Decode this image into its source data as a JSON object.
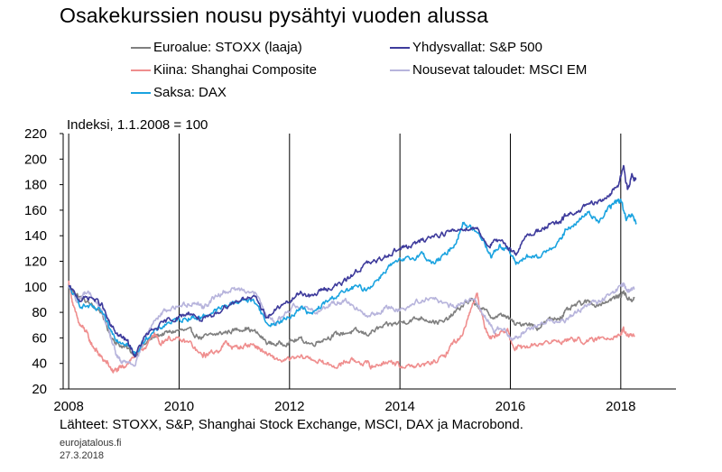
{
  "title": "Osakekurssien nousu pysähtyi vuoden alussa",
  "unit_label": "Indeksi, 1.1.2008 = 100",
  "source": "Lähteet: STOXX, S&P, Shanghai Stock Exchange, MSCI, DAX ja Macrobond.",
  "site": "eurojatalous.fi",
  "date": "27.3.2018",
  "chart_data": {
    "type": "line",
    "ylim": [
      20,
      220
    ],
    "xlim": [
      2007.9,
      2019.0
    ],
    "y_ticks": [
      20,
      40,
      60,
      80,
      100,
      120,
      140,
      160,
      180,
      200,
      220
    ],
    "x_ticks": [
      2008,
      2010,
      2012,
      2014,
      2016,
      2018
    ],
    "x_tick_labels": [
      "2008",
      "2010",
      "2012",
      "2014",
      "2016",
      "2018"
    ],
    "grid": "vertical",
    "legend_position": "top",
    "series": [
      {
        "name": "Euroalue: STOXX (laaja)",
        "color": "#7f7f7f",
        "points": [
          [
            2008.0,
            100
          ],
          [
            2008.2,
            92
          ],
          [
            2008.4,
            86
          ],
          [
            2008.6,
            80
          ],
          [
            2008.75,
            62
          ],
          [
            2008.9,
            55
          ],
          [
            2009.05,
            52
          ],
          [
            2009.2,
            47
          ],
          [
            2009.4,
            56
          ],
          [
            2009.6,
            62
          ],
          [
            2009.8,
            64
          ],
          [
            2010.0,
            66
          ],
          [
            2010.2,
            65
          ],
          [
            2010.4,
            60
          ],
          [
            2010.6,
            62
          ],
          [
            2010.8,
            64
          ],
          [
            2011.0,
            66
          ],
          [
            2011.2,
            68
          ],
          [
            2011.4,
            64
          ],
          [
            2011.6,
            56
          ],
          [
            2011.8,
            55
          ],
          [
            2012.0,
            57
          ],
          [
            2012.2,
            59
          ],
          [
            2012.4,
            55
          ],
          [
            2012.6,
            59
          ],
          [
            2012.8,
            62
          ],
          [
            2013.0,
            64
          ],
          [
            2013.2,
            65
          ],
          [
            2013.4,
            63
          ],
          [
            2013.6,
            67
          ],
          [
            2013.8,
            70
          ],
          [
            2014.0,
            72
          ],
          [
            2014.2,
            74
          ],
          [
            2014.4,
            76
          ],
          [
            2014.6,
            73
          ],
          [
            2014.8,
            72
          ],
          [
            2015.0,
            80
          ],
          [
            2015.2,
            88
          ],
          [
            2015.3,
            89
          ],
          [
            2015.5,
            82
          ],
          [
            2015.7,
            76
          ],
          [
            2015.9,
            78
          ],
          [
            2016.1,
            70
          ],
          [
            2016.3,
            72
          ],
          [
            2016.5,
            68
          ],
          [
            2016.7,
            74
          ],
          [
            2016.9,
            76
          ],
          [
            2017.0,
            80
          ],
          [
            2017.2,
            86
          ],
          [
            2017.4,
            88
          ],
          [
            2017.6,
            86
          ],
          [
            2017.8,
            90
          ],
          [
            2017.95,
            92
          ],
          [
            2018.05,
            96
          ],
          [
            2018.15,
            90
          ],
          [
            2018.25,
            91
          ]
        ]
      },
      {
        "name": "Kiina: Shanghai Composite",
        "color": "#ef8e8e",
        "points": [
          [
            2008.0,
            104
          ],
          [
            2008.1,
            82
          ],
          [
            2008.2,
            70
          ],
          [
            2008.3,
            66
          ],
          [
            2008.4,
            56
          ],
          [
            2008.5,
            50
          ],
          [
            2008.6,
            44
          ],
          [
            2008.7,
            40
          ],
          [
            2008.8,
            34
          ],
          [
            2008.9,
            35
          ],
          [
            2009.0,
            38
          ],
          [
            2009.15,
            44
          ],
          [
            2009.3,
            50
          ],
          [
            2009.45,
            56
          ],
          [
            2009.55,
            64
          ],
          [
            2009.65,
            56
          ],
          [
            2009.8,
            60
          ],
          [
            2010.0,
            58
          ],
          [
            2010.2,
            56
          ],
          [
            2010.4,
            46
          ],
          [
            2010.5,
            47
          ],
          [
            2010.7,
            50
          ],
          [
            2010.85,
            56
          ],
          [
            2011.0,
            52
          ],
          [
            2011.2,
            54
          ],
          [
            2011.35,
            55
          ],
          [
            2011.5,
            50
          ],
          [
            2011.7,
            44
          ],
          [
            2011.9,
            42
          ],
          [
            2012.1,
            44
          ],
          [
            2012.3,
            45
          ],
          [
            2012.5,
            42
          ],
          [
            2012.7,
            39
          ],
          [
            2012.9,
            38
          ],
          [
            2013.0,
            42
          ],
          [
            2013.2,
            42
          ],
          [
            2013.4,
            40
          ],
          [
            2013.5,
            37
          ],
          [
            2013.7,
            41
          ],
          [
            2013.9,
            41
          ],
          [
            2014.0,
            38
          ],
          [
            2014.2,
            38
          ],
          [
            2014.4,
            38
          ],
          [
            2014.6,
            41
          ],
          [
            2014.8,
            45
          ],
          [
            2014.95,
            56
          ],
          [
            2015.1,
            60
          ],
          [
            2015.25,
            78
          ],
          [
            2015.4,
            96
          ],
          [
            2015.45,
            82
          ],
          [
            2015.55,
            68
          ],
          [
            2015.65,
            60
          ],
          [
            2015.8,
            64
          ],
          [
            2015.95,
            66
          ],
          [
            2016.05,
            52
          ],
          [
            2016.2,
            52
          ],
          [
            2016.4,
            54
          ],
          [
            2016.6,
            56
          ],
          [
            2016.8,
            57
          ],
          [
            2017.0,
            58
          ],
          [
            2017.2,
            59
          ],
          [
            2017.4,
            57
          ],
          [
            2017.6,
            59
          ],
          [
            2017.8,
            61
          ],
          [
            2018.0,
            63
          ],
          [
            2018.05,
            66
          ],
          [
            2018.15,
            61
          ],
          [
            2018.25,
            62
          ]
        ]
      },
      {
        "name": "Saksa: DAX",
        "color": "#1aa3e0",
        "points": [
          [
            2008.0,
            100
          ],
          [
            2008.2,
            86
          ],
          [
            2008.4,
            84
          ],
          [
            2008.6,
            80
          ],
          [
            2008.75,
            66
          ],
          [
            2008.9,
            58
          ],
          [
            2009.05,
            56
          ],
          [
            2009.2,
            47
          ],
          [
            2009.4,
            60
          ],
          [
            2009.6,
            66
          ],
          [
            2009.8,
            72
          ],
          [
            2010.0,
            74
          ],
          [
            2010.2,
            76
          ],
          [
            2010.4,
            76
          ],
          [
            2010.6,
            80
          ],
          [
            2010.8,
            84
          ],
          [
            2011.0,
            88
          ],
          [
            2011.2,
            90
          ],
          [
            2011.4,
            88
          ],
          [
            2011.6,
            70
          ],
          [
            2011.8,
            72
          ],
          [
            2012.0,
            76
          ],
          [
            2012.2,
            84
          ],
          [
            2012.4,
            78
          ],
          [
            2012.6,
            86
          ],
          [
            2012.8,
            92
          ],
          [
            2013.0,
            96
          ],
          [
            2013.2,
            100
          ],
          [
            2013.4,
            98
          ],
          [
            2013.6,
            106
          ],
          [
            2013.8,
            116
          ],
          [
            2014.0,
            120
          ],
          [
            2014.2,
            122
          ],
          [
            2014.4,
            126
          ],
          [
            2014.6,
            118
          ],
          [
            2014.8,
            124
          ],
          [
            2015.0,
            134
          ],
          [
            2015.15,
            150
          ],
          [
            2015.3,
            146
          ],
          [
            2015.5,
            138
          ],
          [
            2015.65,
            124
          ],
          [
            2015.8,
            132
          ],
          [
            2015.95,
            130
          ],
          [
            2016.1,
            118
          ],
          [
            2016.3,
            124
          ],
          [
            2016.5,
            122
          ],
          [
            2016.7,
            130
          ],
          [
            2016.9,
            136
          ],
          [
            2017.0,
            144
          ],
          [
            2017.2,
            150
          ],
          [
            2017.4,
            158
          ],
          [
            2017.6,
            152
          ],
          [
            2017.8,
            162
          ],
          [
            2017.9,
            166
          ],
          [
            2018.0,
            168
          ],
          [
            2018.1,
            152
          ],
          [
            2018.2,
            156
          ],
          [
            2018.28,
            150
          ]
        ]
      },
      {
        "name": "Yhdysvallat: S&P 500",
        "color": "#3e3b9c",
        "points": [
          [
            2008.0,
            100
          ],
          [
            2008.2,
            90
          ],
          [
            2008.4,
            92
          ],
          [
            2008.6,
            86
          ],
          [
            2008.75,
            70
          ],
          [
            2008.9,
            62
          ],
          [
            2009.05,
            58
          ],
          [
            2009.2,
            46
          ],
          [
            2009.4,
            62
          ],
          [
            2009.6,
            68
          ],
          [
            2009.8,
            74
          ],
          [
            2010.0,
            76
          ],
          [
            2010.2,
            80
          ],
          [
            2010.4,
            74
          ],
          [
            2010.6,
            76
          ],
          [
            2010.8,
            84
          ],
          [
            2011.0,
            88
          ],
          [
            2011.2,
            92
          ],
          [
            2011.4,
            90
          ],
          [
            2011.6,
            76
          ],
          [
            2011.8,
            84
          ],
          [
            2012.0,
            88
          ],
          [
            2012.2,
            96
          ],
          [
            2012.4,
            92
          ],
          [
            2012.6,
            98
          ],
          [
            2012.8,
            100
          ],
          [
            2013.0,
            104
          ],
          [
            2013.2,
            112
          ],
          [
            2013.4,
            118
          ],
          [
            2013.6,
            120
          ],
          [
            2013.8,
            126
          ],
          [
            2014.0,
            130
          ],
          [
            2014.2,
            132
          ],
          [
            2014.4,
            136
          ],
          [
            2014.6,
            140
          ],
          [
            2014.8,
            142
          ],
          [
            2015.0,
            144
          ],
          [
            2015.2,
            146
          ],
          [
            2015.4,
            146
          ],
          [
            2015.6,
            132
          ],
          [
            2015.75,
            136
          ],
          [
            2015.95,
            132
          ],
          [
            2016.1,
            126
          ],
          [
            2016.3,
            140
          ],
          [
            2016.5,
            144
          ],
          [
            2016.7,
            148
          ],
          [
            2016.9,
            150
          ],
          [
            2017.0,
            156
          ],
          [
            2017.2,
            158
          ],
          [
            2017.4,
            164
          ],
          [
            2017.6,
            166
          ],
          [
            2017.8,
            172
          ],
          [
            2017.95,
            180
          ],
          [
            2018.05,
            194
          ],
          [
            2018.12,
            176
          ],
          [
            2018.2,
            186
          ],
          [
            2018.28,
            184
          ]
        ]
      },
      {
        "name": "Nousevat taloudet: MSCI EM",
        "color": "#b7b4dc",
        "points": [
          [
            2008.0,
            100
          ],
          [
            2008.15,
            88
          ],
          [
            2008.3,
            96
          ],
          [
            2008.45,
            92
          ],
          [
            2008.6,
            80
          ],
          [
            2008.75,
            62
          ],
          [
            2008.85,
            48
          ],
          [
            2008.95,
            40
          ],
          [
            2009.05,
            42
          ],
          [
            2009.2,
            40
          ],
          [
            2009.35,
            56
          ],
          [
            2009.5,
            70
          ],
          [
            2009.7,
            80
          ],
          [
            2009.9,
            84
          ],
          [
            2010.1,
            86
          ],
          [
            2010.3,
            88
          ],
          [
            2010.45,
            84
          ],
          [
            2010.6,
            90
          ],
          [
            2010.8,
            96
          ],
          [
            2011.0,
            98
          ],
          [
            2011.2,
            98
          ],
          [
            2011.4,
            94
          ],
          [
            2011.6,
            76
          ],
          [
            2011.75,
            72
          ],
          [
            2011.9,
            78
          ],
          [
            2012.1,
            86
          ],
          [
            2012.3,
            84
          ],
          [
            2012.5,
            80
          ],
          [
            2012.7,
            86
          ],
          [
            2012.9,
            88
          ],
          [
            2013.0,
            90
          ],
          [
            2013.2,
            84
          ],
          [
            2013.4,
            76
          ],
          [
            2013.6,
            80
          ],
          [
            2013.8,
            84
          ],
          [
            2014.0,
            82
          ],
          [
            2014.2,
            86
          ],
          [
            2014.4,
            90
          ],
          [
            2014.6,
            92
          ],
          [
            2014.8,
            86
          ],
          [
            2015.0,
            84
          ],
          [
            2015.2,
            90
          ],
          [
            2015.4,
            88
          ],
          [
            2015.55,
            76
          ],
          [
            2015.7,
            66
          ],
          [
            2015.9,
            68
          ],
          [
            2016.05,
            58
          ],
          [
            2016.2,
            64
          ],
          [
            2016.4,
            68
          ],
          [
            2016.6,
            72
          ],
          [
            2016.8,
            74
          ],
          [
            2017.0,
            74
          ],
          [
            2017.2,
            80
          ],
          [
            2017.4,
            86
          ],
          [
            2017.6,
            88
          ],
          [
            2017.8,
            94
          ],
          [
            2018.0,
            100
          ],
          [
            2018.05,
            102
          ],
          [
            2018.15,
            96
          ],
          [
            2018.25,
            98
          ]
        ]
      }
    ]
  }
}
